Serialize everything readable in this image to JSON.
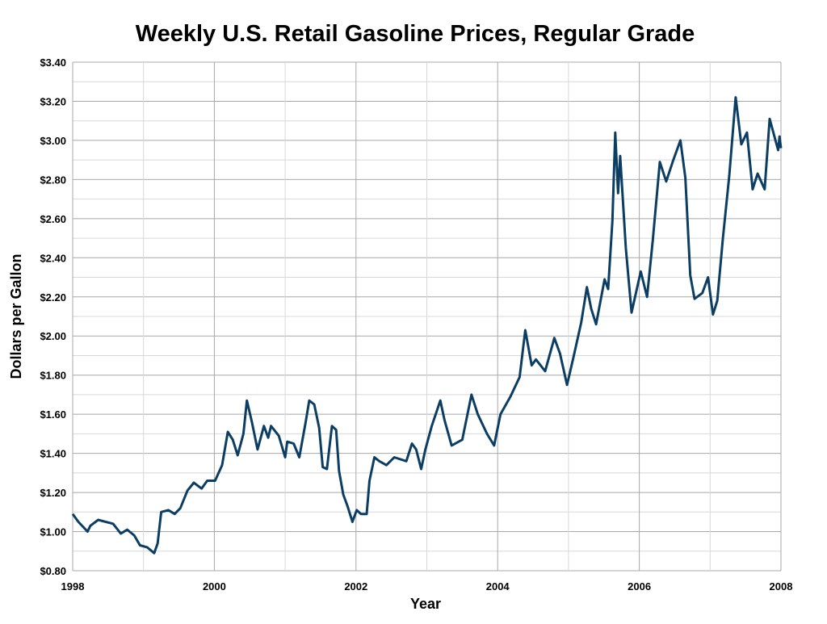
{
  "chart_data": {
    "type": "line",
    "title": "Weekly U.S. Retail Gasoline Prices, Regular Grade",
    "xlabel": "Year",
    "ylabel": "Dollars per Gallon",
    "xlim": [
      1998,
      2008
    ],
    "ylim": [
      0.8,
      3.4
    ],
    "x_ticks": [
      "1998",
      "2000",
      "2002",
      "2004",
      "2006",
      "2008"
    ],
    "y_ticks": [
      "$0.80",
      "$1.00",
      "$1.20",
      "$1.40",
      "$1.60",
      "$1.80",
      "$2.00",
      "$2.20",
      "$2.40",
      "$2.60",
      "$2.80",
      "$3.00",
      "$3.20",
      "$3.40"
    ],
    "grid": true,
    "legend": "none",
    "line_color": "#0c3e63",
    "series": [
      {
        "x": [
          1998.0,
          1998.08,
          1998.21,
          1998.25,
          1998.36,
          1998.57,
          1998.68,
          1998.77,
          1998.87,
          1998.95,
          1999.05,
          1999.15,
          1999.2,
          1999.25,
          1999.35,
          1999.44,
          1999.52,
          1999.62,
          1999.71,
          1999.82,
          1999.9,
          2000.01,
          2000.11,
          2000.19,
          2000.26,
          2000.33,
          2000.41,
          2000.46,
          2000.53,
          2000.61,
          2000.7,
          2000.76,
          2000.8,
          2000.91,
          2001.0,
          2001.03,
          2001.12,
          2001.2,
          2001.29,
          2001.34,
          2001.41,
          2001.48,
          2001.53,
          2001.59,
          2001.66,
          2001.72,
          2001.76,
          2001.82,
          2001.88,
          2001.95,
          2002.01,
          2002.07,
          2002.15,
          2002.19,
          2002.26,
          2002.33,
          2002.43,
          2002.54,
          2002.71,
          2002.79,
          2002.85,
          2002.92,
          2002.98,
          2003.07,
          2003.19,
          2003.25,
          2003.35,
          2003.5,
          2003.63,
          2003.72,
          2003.85,
          2003.95,
          2004.04,
          2004.18,
          2004.31,
          2004.39,
          2004.48,
          2004.54,
          2004.67,
          2004.8,
          2004.88,
          2004.98,
          2005.07,
          2005.18,
          2005.26,
          2005.32,
          2005.39,
          2005.51,
          2005.56,
          2005.62,
          2005.66,
          2005.7,
          2005.73,
          2005.81,
          2005.89,
          2006.02,
          2006.11,
          2006.19,
          2006.29,
          2006.38,
          2006.48,
          2006.58,
          2006.65,
          2006.72,
          2006.78,
          2006.89,
          2006.97,
          2007.04,
          2007.1,
          2007.18,
          2007.27,
          2007.36,
          2007.44,
          2007.52,
          2007.6,
          2007.67,
          2007.77,
          2007.84,
          2007.96,
          2007.98,
          2008.0
        ],
        "values": [
          1.09,
          1.05,
          1.0,
          1.03,
          1.06,
          1.04,
          0.99,
          1.01,
          0.98,
          0.93,
          0.92,
          0.89,
          0.94,
          1.1,
          1.11,
          1.09,
          1.12,
          1.21,
          1.25,
          1.22,
          1.26,
          1.26,
          1.34,
          1.51,
          1.47,
          1.39,
          1.5,
          1.67,
          1.56,
          1.42,
          1.54,
          1.48,
          1.54,
          1.49,
          1.38,
          1.46,
          1.45,
          1.38,
          1.56,
          1.67,
          1.65,
          1.53,
          1.33,
          1.32,
          1.54,
          1.52,
          1.31,
          1.19,
          1.13,
          1.05,
          1.11,
          1.09,
          1.09,
          1.26,
          1.38,
          1.36,
          1.34,
          1.38,
          1.36,
          1.45,
          1.42,
          1.32,
          1.42,
          1.54,
          1.67,
          1.57,
          1.44,
          1.47,
          1.7,
          1.6,
          1.5,
          1.44,
          1.6,
          1.69,
          1.79,
          2.03,
          1.85,
          1.88,
          1.82,
          1.99,
          1.91,
          1.75,
          1.89,
          2.07,
          2.25,
          2.14,
          2.06,
          2.29,
          2.24,
          2.59,
          3.04,
          2.73,
          2.92,
          2.45,
          2.12,
          2.33,
          2.2,
          2.49,
          2.89,
          2.79,
          2.9,
          3.0,
          2.81,
          2.31,
          2.19,
          2.22,
          2.3,
          2.11,
          2.18,
          2.5,
          2.82,
          3.22,
          2.98,
          3.04,
          2.75,
          2.83,
          2.75,
          3.11,
          2.95,
          3.02,
          2.96
        ]
      }
    ]
  }
}
